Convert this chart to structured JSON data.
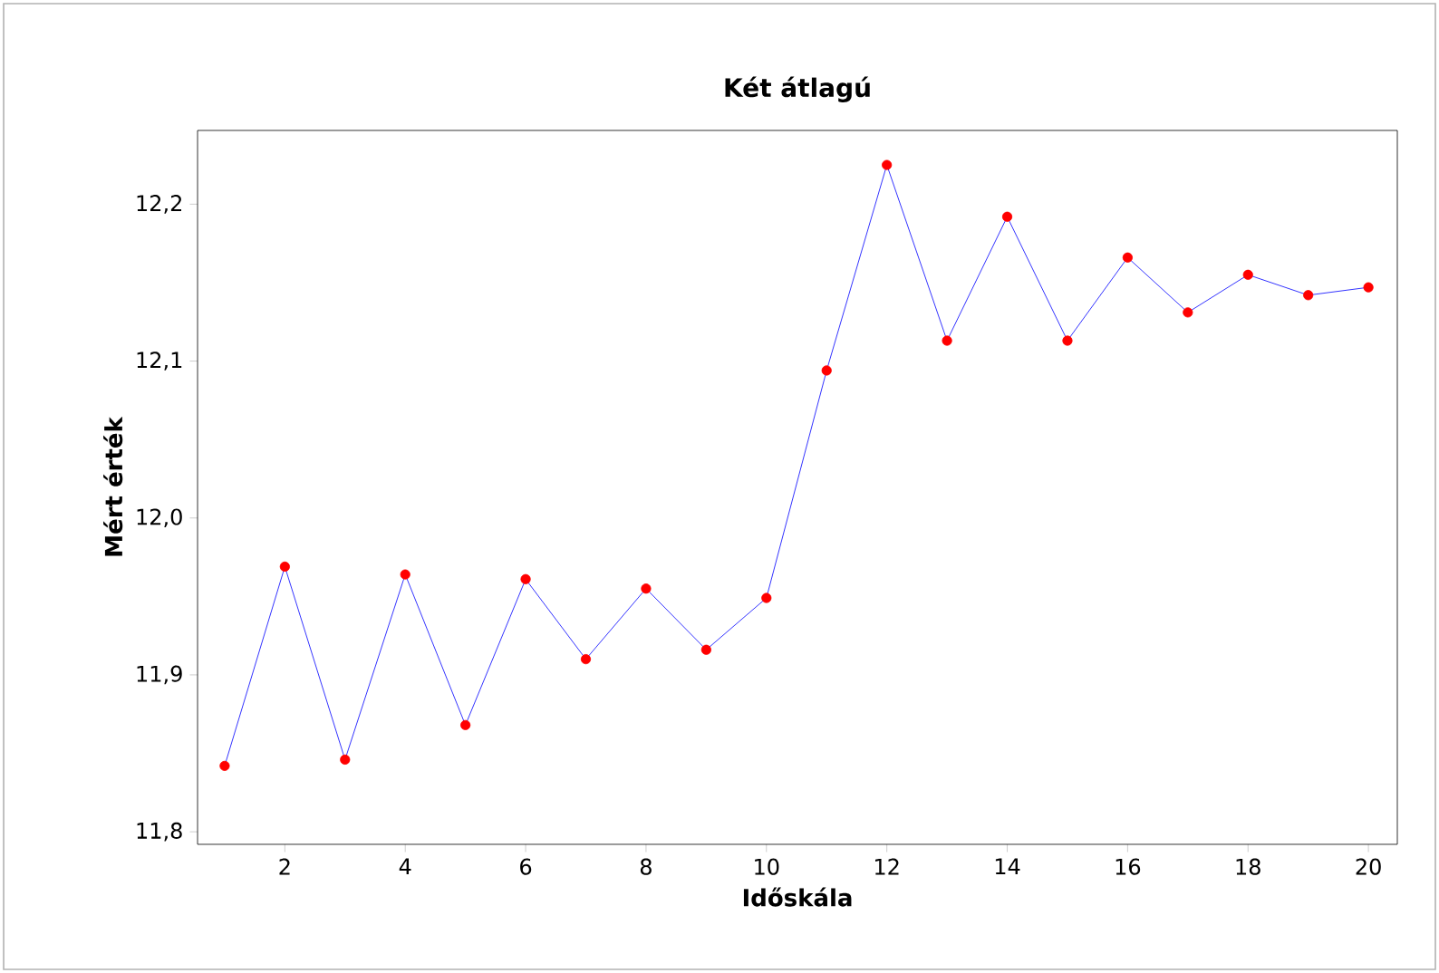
{
  "chart_data": {
    "type": "line",
    "title": "Két átlagú",
    "xlabel": "Időskála",
    "ylabel": "Mért érték",
    "x": [
      1,
      2,
      3,
      4,
      5,
      6,
      7,
      8,
      9,
      10,
      11,
      12,
      13,
      14,
      15,
      16,
      17,
      18,
      19,
      20
    ],
    "series": [
      {
        "color": "#0000ff",
        "colors": [
          "#ff0000",
          "#ff0000",
          "#ff0000",
          "#ff0000",
          "#ff0000",
          "#ff0000",
          "#ff0000",
          "#ff0000",
          "#ff0000",
          "#ff0000",
          "#ff0000",
          "#ff0000",
          "#ff0000",
          "#ff0000",
          "#ff0000",
          "#ff0000",
          "#ff0000",
          "#ff0000",
          "#ff0000",
          "#ff0000"
        ],
        "values": [
          11.842,
          11.969,
          11.846,
          11.964,
          11.868,
          11.961,
          11.91,
          11.955,
          11.916,
          11.949,
          12.094,
          12.225,
          12.113,
          12.192,
          12.113,
          12.166,
          12.131,
          12.155,
          12.142,
          12.147
        ]
      }
    ],
    "xlim": [
      0.55,
      20.48
    ],
    "xticks": [
      2,
      4,
      6,
      8,
      10,
      12,
      14,
      16,
      18,
      20
    ],
    "ylim": [
      11.792,
      12.247
    ],
    "yticks": [
      {
        "value": 11.8,
        "label": "11,8"
      },
      {
        "value": 11.9,
        "label": "11,9"
      },
      {
        "value": 12.0,
        "label": "12,0"
      },
      {
        "value": 12.1,
        "label": "12,1"
      },
      {
        "value": 12.2,
        "label": "12,2"
      }
    ],
    "marker": "circle",
    "grid": false
  }
}
